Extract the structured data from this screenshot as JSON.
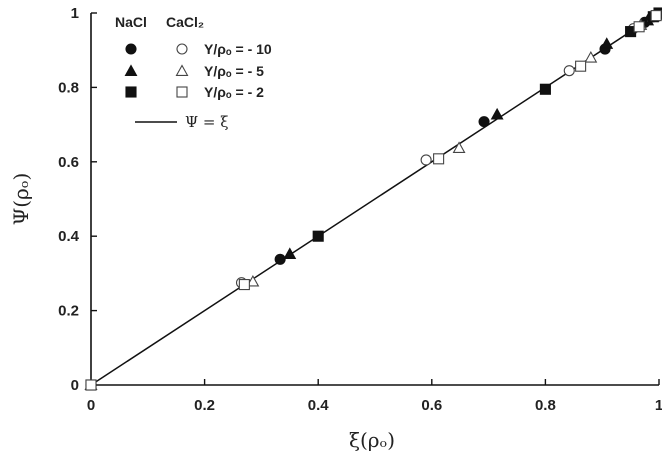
{
  "chart_data": {
    "type": "scatter",
    "xlabel": "ξ(ρₒ)",
    "ylabel": "Ψ(ρₒ)",
    "xlim": [
      0,
      1
    ],
    "ylim": [
      0,
      1
    ],
    "xticks": [
      "0",
      "0.2",
      "0.4",
      "0.6",
      "0.8",
      "1"
    ],
    "yticks": [
      "0",
      "0.2",
      "0.4",
      "0.6",
      "0.8",
      "1"
    ],
    "legend": {
      "header_nacl": "NaCl",
      "header_cacl2": "CaCl₂",
      "entries": [
        "Y/ρₒ = - 10",
        "Y/ρₒ = - 5",
        "Y/ρₒ = - 2"
      ],
      "line_label": "Ψ = ξ",
      "placement": "top-left"
    },
    "reference_line": {
      "from": [
        0,
        0
      ],
      "to": [
        1,
        1
      ]
    },
    "series": [
      {
        "name": "NaCl, Y/ρₒ = - 10",
        "marker": "circle",
        "filled": true,
        "x": [
          0,
          0.333,
          0.692,
          0.905,
          0.975,
          0.99
        ],
        "y": [
          0,
          0.338,
          0.708,
          0.903,
          0.975,
          0.99
        ]
      },
      {
        "name": "CaCl₂, Y/ρₒ = - 10",
        "marker": "circle",
        "filled": false,
        "x": [
          0,
          0.265,
          0.59,
          0.842,
          0.955,
          0.99
        ],
        "y": [
          0,
          0.275,
          0.605,
          0.845,
          0.958,
          0.99
        ]
      },
      {
        "name": "NaCl, Y/ρₒ = - 5",
        "marker": "triangle",
        "filled": true,
        "x": [
          0,
          0.35,
          0.715,
          0.908,
          0.98,
          0.995
        ],
        "y": [
          0,
          0.352,
          0.727,
          0.917,
          0.98,
          0.995
        ]
      },
      {
        "name": "CaCl₂, Y/ρₒ = - 5",
        "marker": "triangle",
        "filled": false,
        "x": [
          0,
          0.285,
          0.648,
          0.88,
          0.968,
          0.99
        ],
        "y": [
          0,
          0.278,
          0.637,
          0.88,
          0.968,
          0.99
        ]
      },
      {
        "name": "NaCl, Y/ρₒ = - 2",
        "marker": "square",
        "filled": true,
        "x": [
          0,
          0.4,
          0.8,
          0.95,
          0.99,
          1.0
        ],
        "y": [
          0,
          0.4,
          0.795,
          0.95,
          0.99,
          1.0
        ]
      },
      {
        "name": "CaCl₂, Y/ρₒ = - 2",
        "marker": "square",
        "filled": false,
        "x": [
          0,
          0.27,
          0.612,
          0.862,
          0.965,
          0.995
        ],
        "y": [
          0,
          0.27,
          0.608,
          0.857,
          0.963,
          0.993
        ]
      }
    ]
  }
}
